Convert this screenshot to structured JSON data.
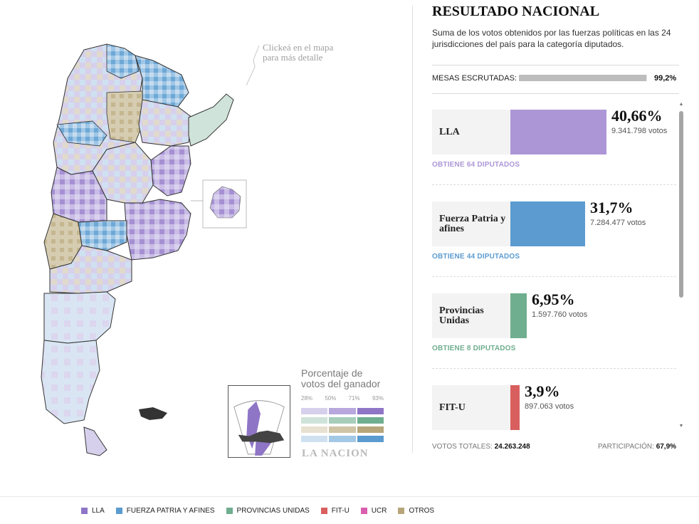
{
  "map": {
    "hint_line1": "Clickeá en el mapa",
    "hint_line2": "para más detalle",
    "legend_title_line1": "Porcentaje de",
    "legend_title_line2": "votos del ganador",
    "legend_ticks": [
      "28%",
      "50%",
      "71%",
      "93%"
    ],
    "brand": "LA NACION",
    "scale_colors": [
      [
        "#d7d0ec",
        "#b7a7dc",
        "#8f75c6"
      ],
      [
        "#cfe3da",
        "#a7cdbb",
        "#6fae8f"
      ],
      [
        "#e7e1d1",
        "#cfc4a5",
        "#b7a67a"
      ],
      [
        "#cfe1f1",
        "#a3c8e6",
        "#5b9bd0"
      ]
    ]
  },
  "panel": {
    "title": "RESULTADO NACIONAL",
    "subtitle": "Suma de los votos obtenidos por las fuerzas políticas en las 24 jurisdicciones del país para la categoría diputados.",
    "mesas_label": "MESAS ESCRUTADAS:",
    "mesas_value": "99,2%",
    "mesas_fraction": 0.992,
    "parties": [
      {
        "name": "LLA",
        "pct": "40,66%",
        "share": 40.66,
        "votes": "9.341.798 votos",
        "seats": "OBTIENE 64 DIPUTADOS",
        "color": "#ad96d6"
      },
      {
        "name": "Fuerza Patria y afines",
        "pct": "31,7%",
        "share": 31.7,
        "votes": "7.284.477 votos",
        "seats": "OBTIENE 44 DIPUTADOS",
        "color": "#5b9bd0"
      },
      {
        "name": "Provincias Unidas",
        "pct": "6,95%",
        "share": 6.95,
        "votes": "1.597.760 votos",
        "seats": "OBTIENE 8 DIPUTADOS",
        "color": "#6fae8f"
      },
      {
        "name": "FIT-U",
        "pct": "3,9%",
        "share": 3.9,
        "votes": "897.063 votos",
        "seats": "",
        "color": "#d95f5f"
      }
    ],
    "totals_label": "VOTOS TOTALES:",
    "totals_value": "24.263.248",
    "participation_label": "PARTICIPACIÓN:",
    "participation_value": "67,9%"
  },
  "legend": [
    {
      "label": "LLA",
      "color": "#8f75c6"
    },
    {
      "label": "FUERZA PATRIA Y AFINES",
      "color": "#5b9bd0"
    },
    {
      "label": "PROVINCIAS UNIDAS",
      "color": "#6fae8f"
    },
    {
      "label": "FIT-U",
      "color": "#d95f5f"
    },
    {
      "label": "UCR",
      "color": "#d95fae"
    },
    {
      "label": "OTROS",
      "color": "#b7a67a"
    }
  ]
}
